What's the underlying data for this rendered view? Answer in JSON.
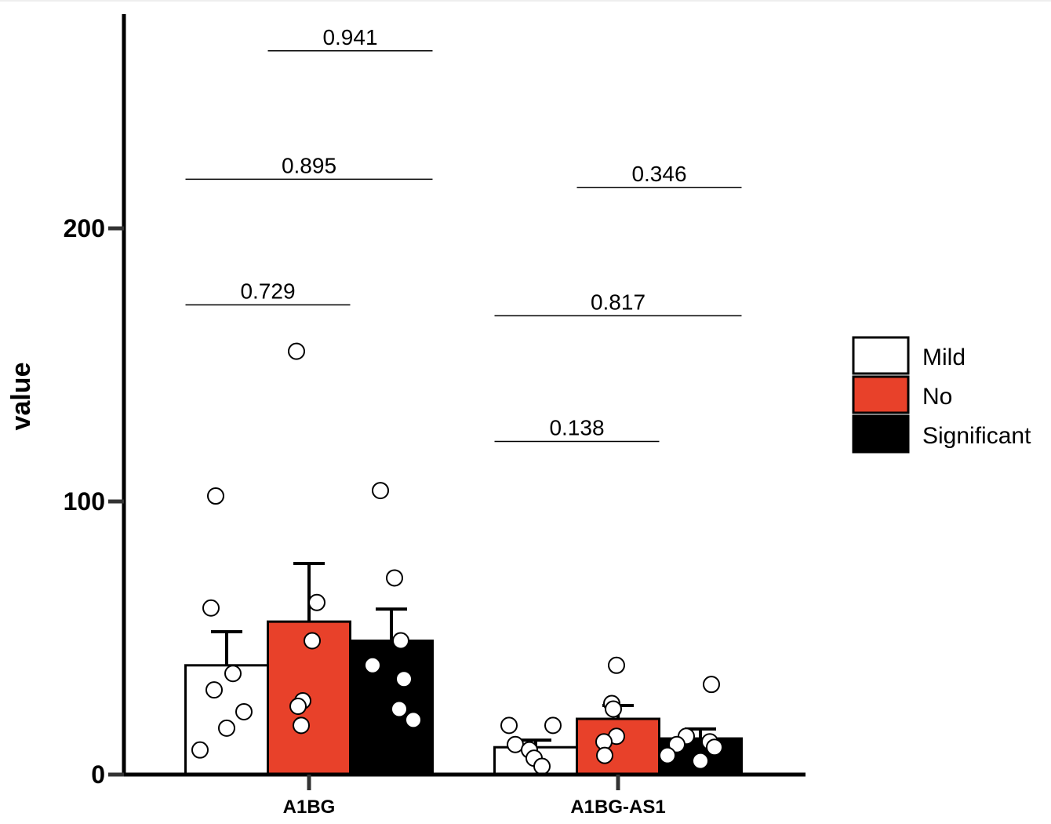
{
  "chart_data": {
    "type": "bar",
    "title": "",
    "xlabel": "",
    "ylabel": "value",
    "ylim": [
      0,
      278
    ],
    "yticks": [
      "0",
      "100",
      "200"
    ],
    "categories": [
      "A1BG",
      "A1BG-AS1"
    ],
    "legend_position": "right",
    "series": [
      {
        "name": "Mild",
        "color": "#FFFFFF",
        "values": [
          40,
          10
        ],
        "error_upper": [
          52.3,
          12.6
        ],
        "points": [
          [
            102,
            61,
            37,
            31,
            23,
            17,
            9
          ],
          [
            18,
            18,
            11,
            9,
            6,
            3
          ]
        ]
      },
      {
        "name": "No",
        "color": "#E8412A",
        "values": [
          56,
          20.4
        ],
        "error_upper": [
          77.3,
          25.3
        ],
        "points": [
          [
            155,
            63,
            49,
            27,
            25,
            18
          ],
          [
            40,
            26,
            24,
            14,
            12,
            7
          ]
        ]
      },
      {
        "name": "Significant",
        "color": "#000000",
        "values": [
          49,
          13.2
        ],
        "error_upper": [
          60.6,
          16.7
        ],
        "points": [
          [
            104,
            72,
            49,
            40,
            35,
            24,
            20
          ],
          [
            33,
            14,
            12,
            10,
            11,
            7,
            5
          ]
        ]
      }
    ],
    "annotations": [
      {
        "category": "A1BG",
        "from": "No",
        "to": "Significant",
        "y": 265,
        "label": "0.941"
      },
      {
        "category": "A1BG",
        "from": "Mild",
        "to": "Significant",
        "y": 218,
        "label": "0.895"
      },
      {
        "category": "A1BG",
        "from": "Mild",
        "to": "No",
        "y": 172,
        "label": "0.729"
      },
      {
        "category": "A1BG-AS1",
        "from": "No",
        "to": "Significant",
        "y": 215,
        "label": "0.346"
      },
      {
        "category": "A1BG-AS1",
        "from": "Mild",
        "to": "Significant",
        "y": 168,
        "label": "0.817"
      },
      {
        "category": "A1BG-AS1",
        "from": "Mild",
        "to": "No",
        "y": 122,
        "label": "0.138"
      }
    ]
  }
}
